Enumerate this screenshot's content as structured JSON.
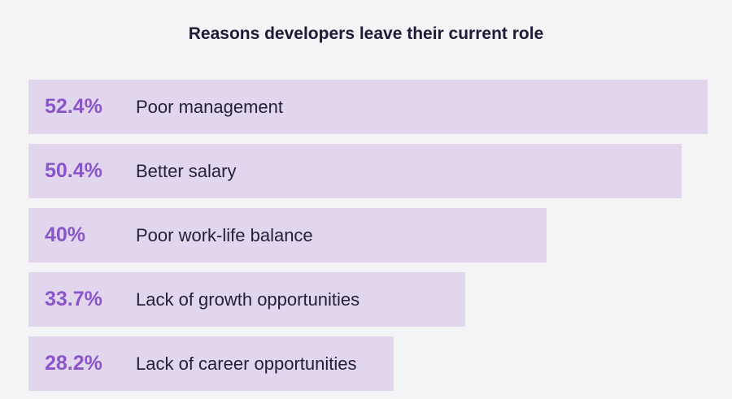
{
  "chart_data": {
    "type": "bar",
    "orientation": "horizontal",
    "title": "Reasons developers leave their current role",
    "categories": [
      "Poor management",
      "Better salary",
      "Poor work-life balance",
      "Lack of growth opportunities",
      "Lack of career opportunities"
    ],
    "values": [
      52.4,
      50.4,
      40,
      33.7,
      28.2
    ],
    "value_labels": [
      "52.4%",
      "50.4%",
      "40%",
      "33.7%",
      "28.2%"
    ],
    "xlabel": "",
    "ylabel": "",
    "unit": "%",
    "colors": {
      "bar": "#e2d6ee",
      "value_text": "#8a55c9",
      "label_text": "#22203d"
    }
  }
}
